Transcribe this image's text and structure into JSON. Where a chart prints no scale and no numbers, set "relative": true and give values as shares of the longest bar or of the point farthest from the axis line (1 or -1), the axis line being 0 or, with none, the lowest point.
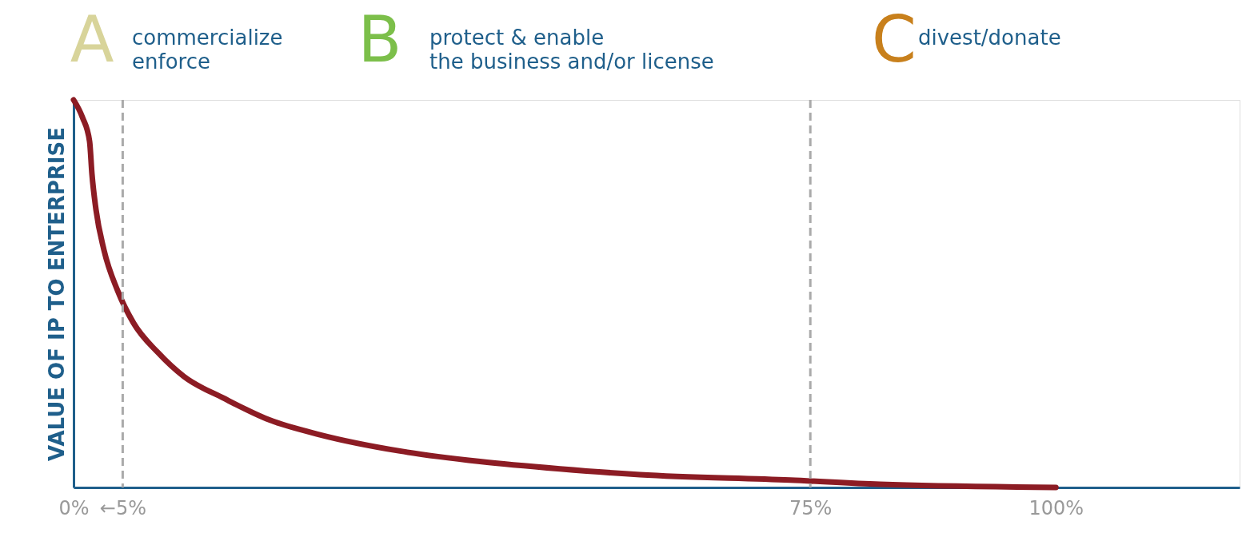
{
  "chart_data": {
    "type": "line",
    "relative": true,
    "ylabel": "VALUE OF IP TO ENTERPRISE",
    "x": [
      0,
      0.9,
      1.63,
      1.87,
      2.28,
      3.09,
      4.48,
      6.11,
      8.55,
      11.24,
      15.31,
      19.95,
      25.08,
      33.22,
      41.37,
      49.51,
      57.65,
      72.96,
      82.08,
      100
    ],
    "series": [
      {
        "color": "#8c1c24",
        "values": [
          1,
          0.955,
          0.893,
          0.809,
          0.717,
          0.613,
          0.508,
          0.424,
          0.349,
          0.286,
          0.23,
          0.174,
          0.136,
          0.094,
          0.067,
          0.048,
          0.033,
          0.019,
          0.008,
          0
        ]
      }
    ],
    "xlim": [
      0,
      118.7
    ],
    "xticks": [
      {
        "value": 0,
        "label": "0%"
      },
      {
        "value": 5,
        "label": "←5%"
      },
      {
        "value": 75,
        "label": "75%"
      },
      {
        "value": 100,
        "label": "100%"
      }
    ],
    "ref_lines": [
      {
        "axis": "x",
        "value": 5,
        "color": "#aaaaaa",
        "line_style": "dashed"
      },
      {
        "axis": "x",
        "value": 75,
        "color": "#aaaaaa",
        "line_style": "dashed"
      }
    ],
    "annotations": [
      "A",
      "commercialize\nenforce",
      "B",
      "protect & enable\nthe business and/or license",
      "C",
      "divest/donate"
    ],
    "grid": false,
    "marker": "none",
    "line_style": "solid"
  }
}
